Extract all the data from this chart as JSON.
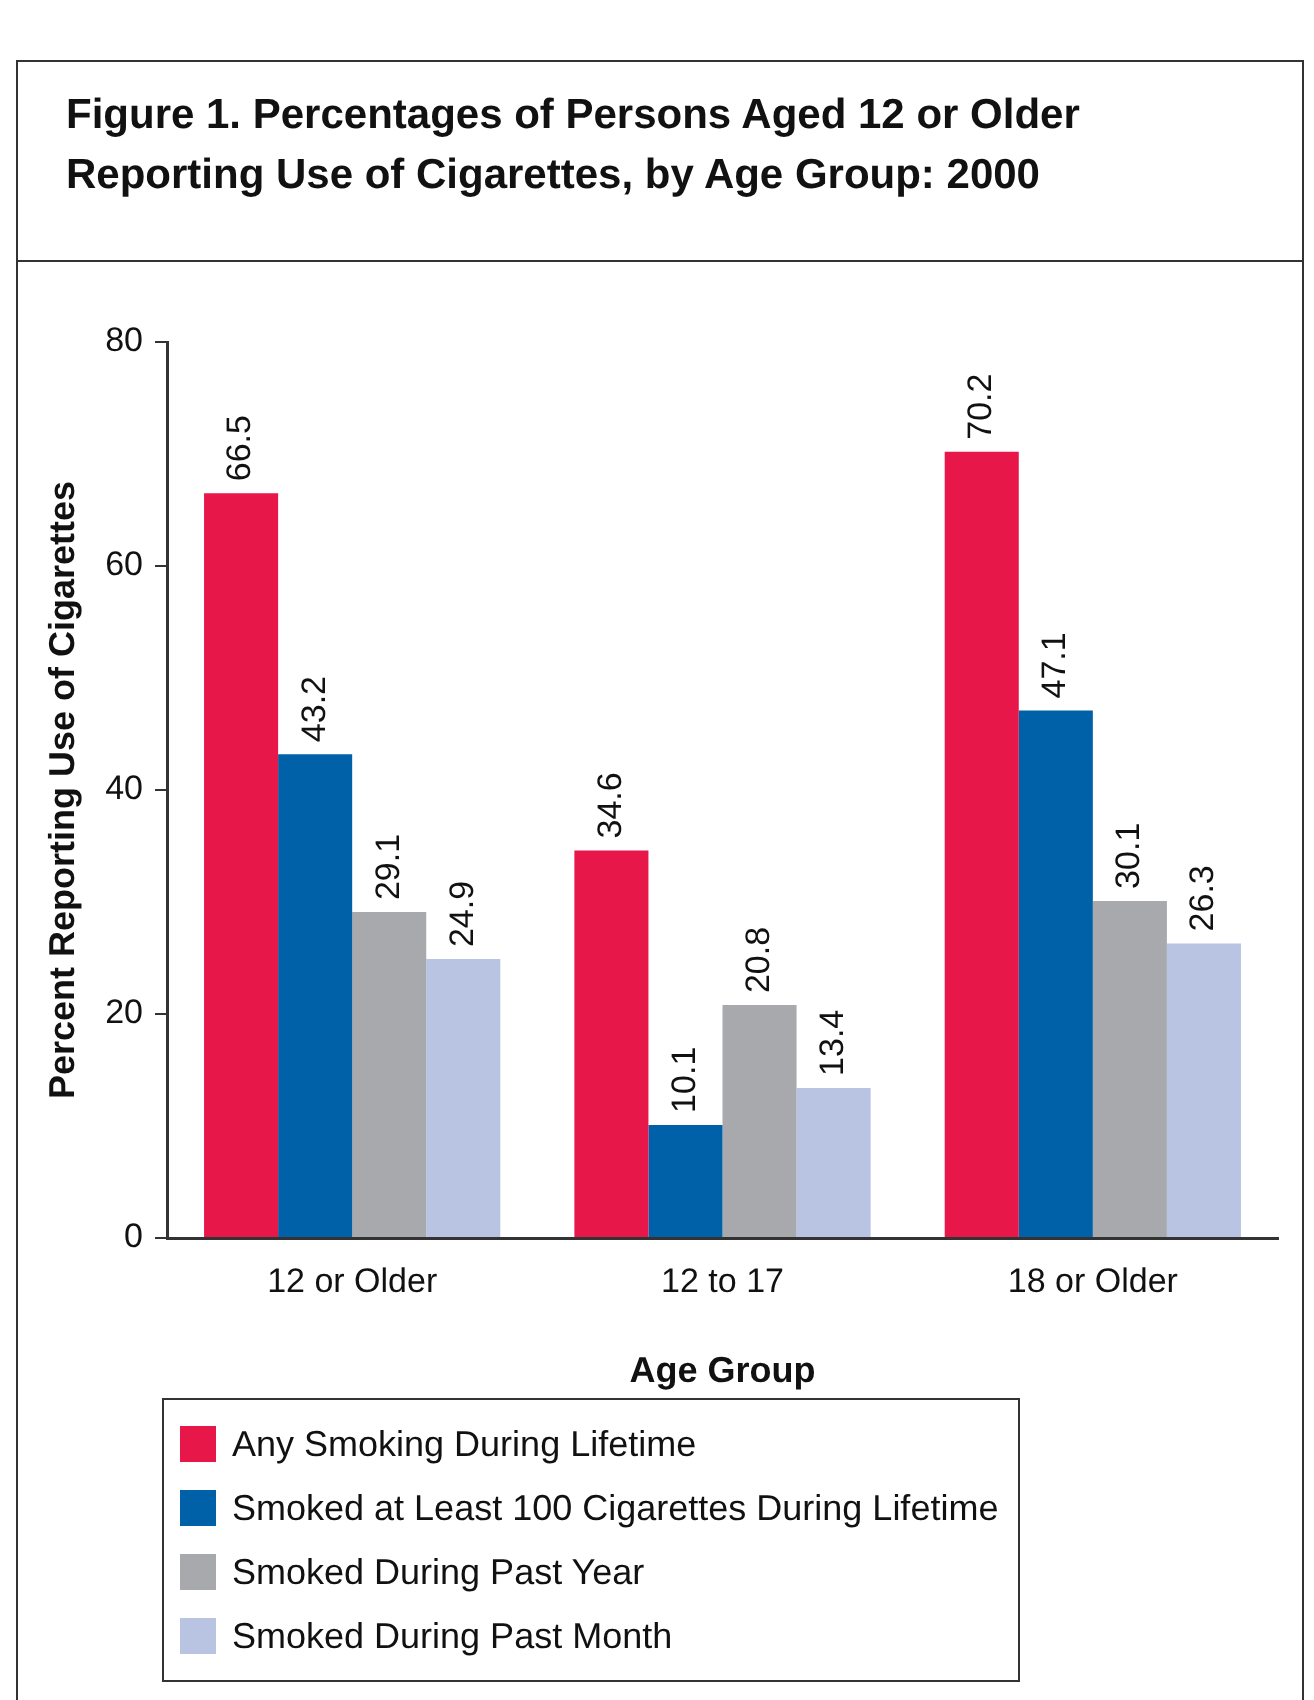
{
  "chart_data": {
    "type": "bar",
    "title": "Figure 1. Percentages of Persons Aged 12 or Older Reporting Use of Cigarettes, by Age Group: 2000",
    "xlabel": "Age Group",
    "ylabel": "Percent Reporting Use of Cigarettes",
    "categories": [
      "12 or Older",
      "12 to 17",
      "18 or Older"
    ],
    "series": [
      {
        "name": "Any Smoking During Lifetime",
        "color": "#e8174a",
        "values": [
          66.5,
          34.6,
          70.2
        ]
      },
      {
        "name": "Smoked at Least 100 Cigarettes During Lifetime",
        "color": "#0060a8",
        "values": [
          43.2,
          10.1,
          47.1
        ]
      },
      {
        "name": "Smoked During Past Year",
        "color": "#a7a9ac",
        "values": [
          29.1,
          20.8,
          30.1
        ]
      },
      {
        "name": "Smoked During Past Month",
        "color": "#b8c4e2",
        "values": [
          24.9,
          13.4,
          26.3
        ]
      }
    ],
    "ylim": [
      0,
      80
    ],
    "yticks": [
      0,
      20,
      40,
      60,
      80
    ],
    "grid": false,
    "legend": "bottom",
    "data_labels": true
  }
}
